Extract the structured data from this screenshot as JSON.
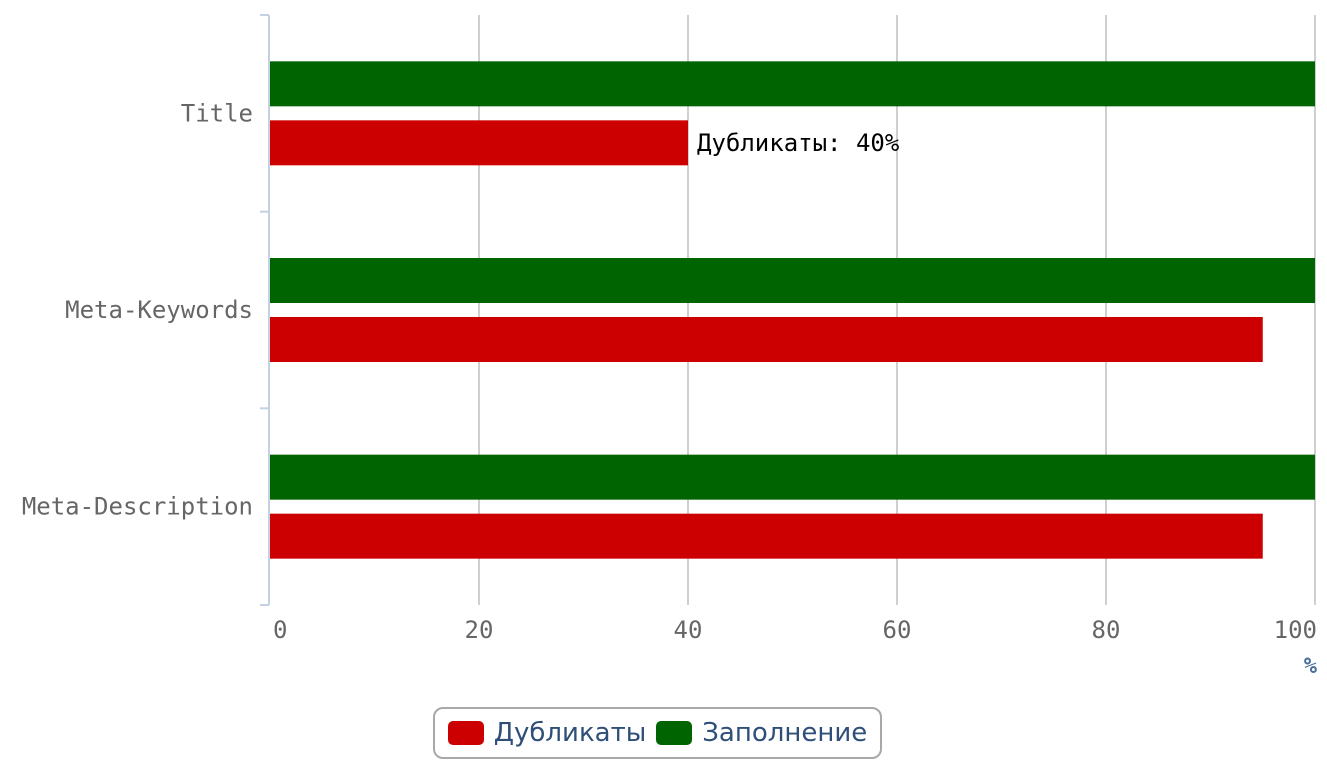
{
  "chart_data": {
    "type": "bar",
    "orientation": "horizontal",
    "categories": [
      "Title",
      "Meta-Keywords",
      "Meta-Description"
    ],
    "series": [
      {
        "name": "Заполнение",
        "color": "#006400",
        "values": [
          100,
          100,
          100
        ]
      },
      {
        "name": "Дубликаты",
        "color": "#cc0000",
        "values": [
          40,
          95,
          95
        ]
      }
    ],
    "xlim": [
      0,
      100
    ],
    "xticks": [
      "0",
      "20",
      "40",
      "60",
      "80",
      "100"
    ],
    "xlabel": "%",
    "grid": true,
    "legend_position": "bottom-center",
    "annotations": [
      {
        "text": "Дубликаты: 40%",
        "series": "Дубликаты",
        "category": "Title"
      }
    ]
  },
  "legend": {
    "items": [
      {
        "label": "Дубликаты",
        "color": "#cc0000"
      },
      {
        "label": "Заполнение",
        "color": "#006400"
      }
    ]
  }
}
